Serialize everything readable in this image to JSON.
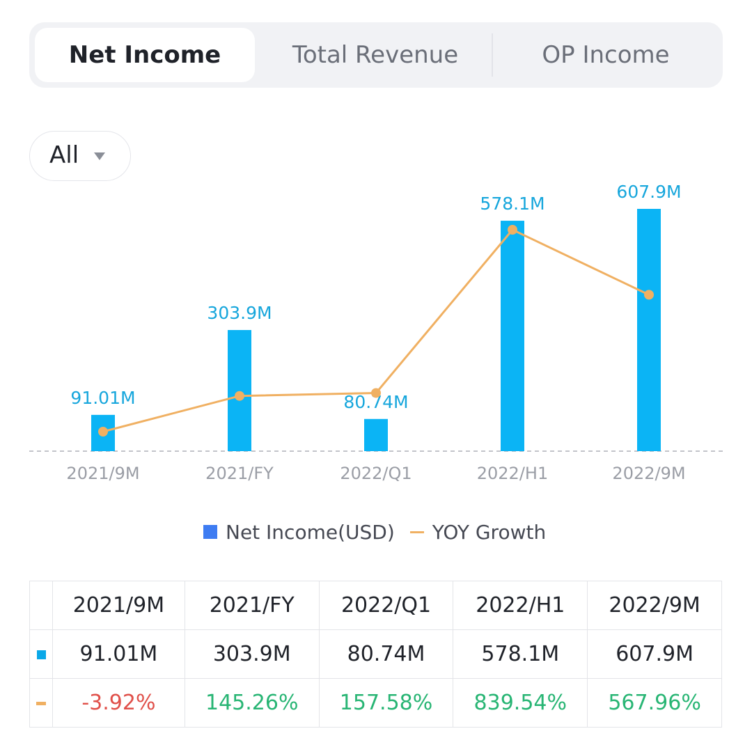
{
  "tabs": [
    {
      "label": "Net Income",
      "active": true
    },
    {
      "label": "Total Revenue",
      "active": false
    },
    {
      "label": "OP Income",
      "active": false
    }
  ],
  "filter": {
    "label": "All"
  },
  "colors": {
    "bar": "#0bb4f5",
    "line": "#f0b062",
    "negative": "#e0504a",
    "positive": "#28b574",
    "legend_bar": "#3e7cf2"
  },
  "chart_data": {
    "type": "bar",
    "categories": [
      "2021/9M",
      "2021/FY",
      "2022/Q1",
      "2022/H1",
      "2022/9M"
    ],
    "series": [
      {
        "name": "Net Income(USD)",
        "type": "bar",
        "values": [
          91.01,
          303.9,
          80.74,
          578.1,
          607.9
        ],
        "labels": [
          "91.01M",
          "303.9M",
          "80.74M",
          "578.1M",
          "607.9M"
        ]
      },
      {
        "name": "YOY Growth",
        "type": "line",
        "values": [
          -3.92,
          145.26,
          157.58,
          839.54,
          567.96
        ],
        "labels": [
          "-3.92%",
          "145.26%",
          "157.58%",
          "839.54%",
          "567.96%"
        ]
      }
    ],
    "legend": [
      "Net Income(USD)",
      "YOY Growth"
    ],
    "ylim": [
      0,
      607.9
    ],
    "y2lim": [
      -3.92,
      839.54
    ]
  },
  "table": {
    "headers": [
      "2021/9M",
      "2021/FY",
      "2022/Q1",
      "2022/H1",
      "2022/9M"
    ],
    "income_row": [
      "91.01M",
      "303.9M",
      "80.74M",
      "578.1M",
      "607.9M"
    ],
    "growth_row": [
      "-3.92%",
      "145.26%",
      "157.58%",
      "839.54%",
      "567.96%"
    ]
  }
}
